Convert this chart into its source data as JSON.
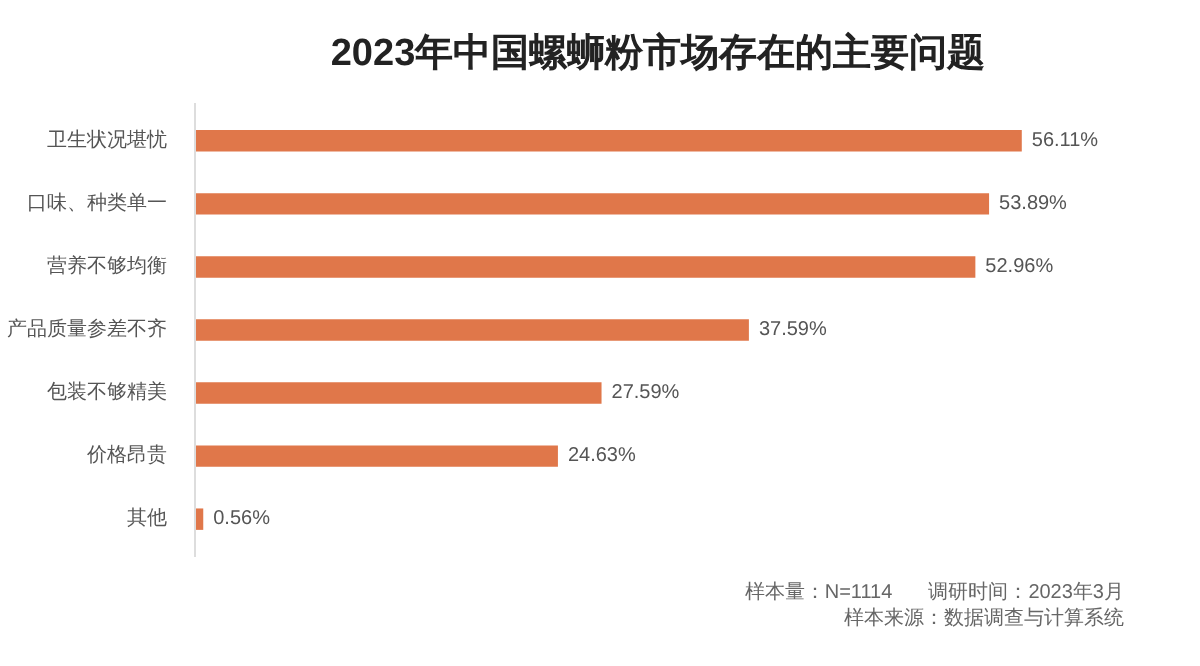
{
  "chart_data": {
    "type": "bar",
    "orientation": "horizontal",
    "title": "2023年中国螺蛳粉市场存在的主要问题",
    "categories": [
      "卫生状况堪忧",
      "口味、种类单一",
      "营养不够均衡",
      "产品质量参差不齐",
      "包装不够精美",
      "价格昂贵",
      "其他"
    ],
    "values": [
      56.11,
      53.89,
      52.96,
      37.59,
      27.59,
      24.63,
      0.56
    ],
    "value_labels": [
      "56.11%",
      "53.89%",
      "52.96%",
      "37.59%",
      "27.59%",
      "24.63%",
      "0.56%"
    ],
    "color": "#e0774a",
    "annotations": [
      "样本量：N=1114",
      "调研时间：2023年3月",
      "样本来源：数据调查与计算系统"
    ]
  }
}
